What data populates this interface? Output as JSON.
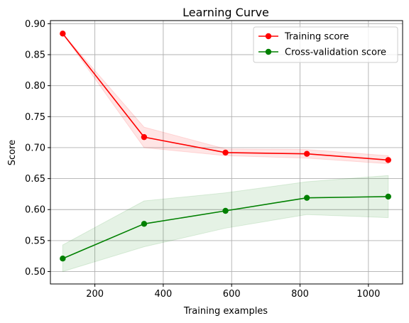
{
  "chart_data": {
    "type": "line",
    "title": "Learning Curve",
    "xlabel": "Training examples",
    "ylabel": "Score",
    "xlim": [
      70,
      1100
    ],
    "ylim": [
      0.48,
      0.905
    ],
    "x_ticks": [
      200,
      400,
      600,
      800,
      1000
    ],
    "y_ticks": [
      0.5,
      0.55,
      0.6,
      0.65,
      0.7,
      0.75,
      0.8,
      0.85,
      0.9
    ],
    "x_tick_labels": [
      "200",
      "400",
      "600",
      "800",
      "1000"
    ],
    "y_tick_labels": [
      "0.50",
      "0.55",
      "0.60",
      "0.65",
      "0.70",
      "0.75",
      "0.80",
      "0.85",
      "0.90"
    ],
    "grid": true,
    "legend_position": "top-right",
    "x": [
      106,
      344,
      582,
      820,
      1058
    ],
    "series": [
      {
        "name": "Training score",
        "color": "#ff0000",
        "band_color": "#ff0000",
        "values": [
          0.884,
          0.717,
          0.692,
          0.69,
          0.68
        ],
        "lower": [
          0.884,
          0.7,
          0.687,
          0.683,
          0.674
        ],
        "upper": [
          0.884,
          0.733,
          0.698,
          0.697,
          0.687
        ]
      },
      {
        "name": "Cross-validation score",
        "color": "#008000",
        "band_color": "#008000",
        "values": [
          0.521,
          0.577,
          0.598,
          0.619,
          0.621
        ],
        "lower": [
          0.5,
          0.54,
          0.57,
          0.592,
          0.587
        ],
        "upper": [
          0.543,
          0.614,
          0.627,
          0.645,
          0.655
        ]
      }
    ]
  }
}
